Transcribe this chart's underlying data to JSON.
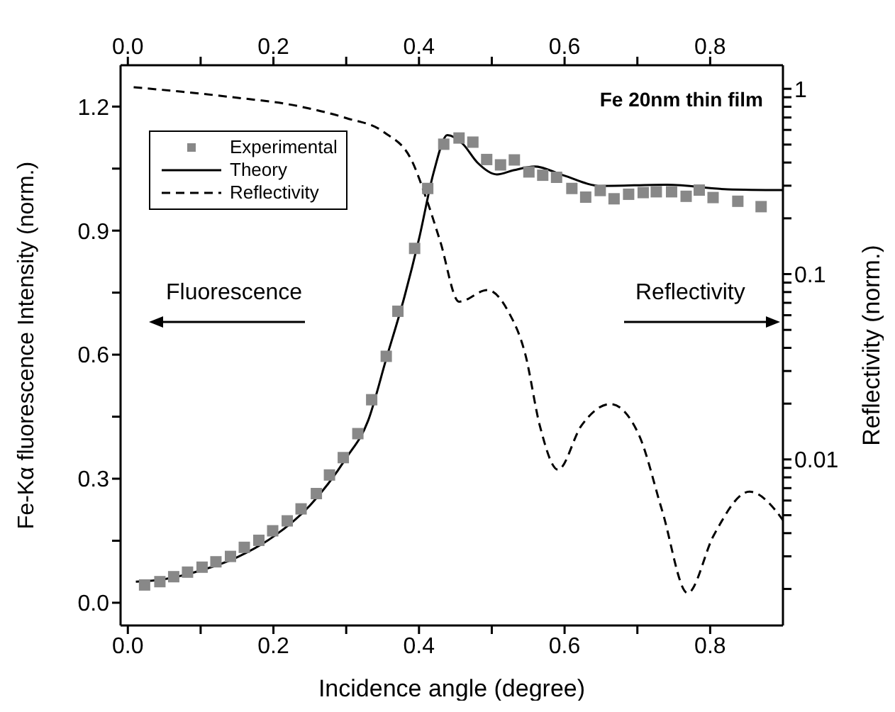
{
  "chart_data": {
    "type": "line",
    "xlabel": "Incidence angle (degree)",
    "ylabel": "Fe-Kα fluorescence Intensity (norm.)",
    "y2label": "Reflectivity (norm.)",
    "annotations": [
      "Fe 20nm thin film",
      "Fluorescence",
      "Reflectivity"
    ],
    "xlim": [
      -0.01,
      0.9
    ],
    "xticks": [
      {
        "value": 0,
        "label": "0.0"
      },
      {
        "value": 0.1,
        "label": null
      },
      0.2,
      {
        "value": 0.3,
        "label": null
      },
      0.4,
      {
        "value": 0.5,
        "label": null
      },
      0.6,
      {
        "value": 0.7,
        "label": null
      },
      0.8
    ],
    "x2lim": [
      -0.01,
      0.9
    ],
    "x2ticks": [
      {
        "value": 0,
        "label": "0.0"
      },
      {
        "value": 0.1,
        "label": null
      },
      0.2,
      {
        "value": 0.3,
        "label": null
      },
      0.4,
      {
        "value": 0.5,
        "label": null
      },
      0.6,
      {
        "value": 0.7,
        "label": null
      },
      0.8
    ],
    "ylim": [
      -0.055,
      1.3
    ],
    "yticks": [
      {
        "value": 0,
        "label": "0.0"
      },
      {
        "value": 0.15,
        "label": null
      },
      0.3,
      {
        "value": 0.45,
        "label": null
      },
      0.6,
      {
        "value": 0.75,
        "label": null
      },
      0.9,
      {
        "value": 1.05,
        "label": null
      },
      1.2
    ],
    "y2lim": [
      0.00127,
      1.34
    ],
    "y2ticks": [
      {
        "value": 0.002,
        "label": null
      },
      {
        "value": 0.003,
        "label": null
      },
      {
        "value": 0.004,
        "label": null
      },
      {
        "value": 0.005,
        "label": null
      },
      {
        "value": 0.006,
        "label": null
      },
      {
        "value": 0.007,
        "label": null
      },
      {
        "value": 0.008,
        "label": null
      },
      {
        "value": 0.009,
        "label": null
      },
      0.01,
      {
        "value": 0.02,
        "label": null
      },
      {
        "value": 0.03,
        "label": null
      },
      {
        "value": 0.04,
        "label": null
      },
      {
        "value": 0.05,
        "label": null
      },
      {
        "value": 0.06,
        "label": null
      },
      {
        "value": 0.07,
        "label": null
      },
      {
        "value": 0.08,
        "label": null
      },
      {
        "value": 0.09,
        "label": null
      },
      0.1,
      {
        "value": 0.2,
        "label": null
      },
      {
        "value": 0.3,
        "label": null
      },
      {
        "value": 0.4,
        "label": null
      },
      {
        "value": 0.5,
        "label": null
      },
      {
        "value": 0.6,
        "label": null
      },
      {
        "value": 0.7,
        "label": null
      },
      {
        "value": 0.8,
        "label": null
      },
      {
        "value": 0.9,
        "label": null
      },
      1
    ],
    "log": "y2",
    "grid": false,
    "legend": "top left",
    "series": [
      {
        "name": "Experimental",
        "type": "scatter",
        "marker": "square",
        "color": "#888888",
        "x": [
          0.023,
          0.044,
          0.063,
          0.082,
          0.102,
          0.121,
          0.141,
          0.16,
          0.18,
          0.199,
          0.219,
          0.238,
          0.259,
          0.277,
          0.296,
          0.316,
          0.335,
          0.355,
          0.371,
          0.394,
          0.412,
          0.434,
          0.455,
          0.474,
          0.493,
          0.512,
          0.531,
          0.551,
          0.57,
          0.589,
          0.61,
          0.629,
          0.649,
          0.668,
          0.688,
          0.708,
          0.726,
          0.747,
          0.767,
          0.785,
          0.804,
          0.838,
          0.87
        ],
        "values": [
          0.043,
          0.051,
          0.063,
          0.074,
          0.086,
          0.099,
          0.112,
          0.134,
          0.151,
          0.174,
          0.198,
          0.227,
          0.264,
          0.309,
          0.351,
          0.409,
          0.491,
          0.596,
          0.705,
          0.857,
          1.002,
          1.109,
          1.124,
          1.114,
          1.072,
          1.059,
          1.071,
          1.042,
          1.034,
          1.029,
          1.002,
          0.981,
          0.997,
          0.977,
          0.988,
          0.992,
          0.994,
          0.994,
          0.983,
          0.998,
          0.98,
          0.971,
          0.958
        ]
      },
      {
        "name": "Theory",
        "line_style": "solid",
        "color": "#000000",
        "x": [
          0.011,
          0.05,
          0.1,
          0.15,
          0.2,
          0.25,
          0.3,
          0.33,
          0.355,
          0.38,
          0.4,
          0.42,
          0.439,
          0.46,
          0.48,
          0.507,
          0.53,
          0.559,
          0.598,
          0.65,
          0.741,
          0.824,
          0.9
        ],
        "values": [
          0.051,
          0.057,
          0.078,
          0.11,
          0.16,
          0.235,
          0.35,
          0.44,
          0.59,
          0.74,
          0.88,
          1.04,
          1.131,
          1.11,
          1.065,
          1.036,
          1.046,
          1.055,
          1.034,
          1.008,
          1.011,
          1.0,
          0.998
        ]
      },
      {
        "name": "Reflectivity",
        "axis": "y2",
        "line_style": "dashed",
        "color": "#000000",
        "x": [
          0.008,
          0.138,
          0.235,
          0.3,
          0.352,
          0.39,
          0.41,
          0.429,
          0.455,
          0.494,
          0.523,
          0.546,
          0.566,
          0.591,
          0.623,
          0.663,
          0.702,
          0.734,
          0.769,
          0.805,
          0.854,
          0.89,
          0.9
        ],
        "values": [
          1.02,
          0.906,
          0.805,
          0.695,
          0.583,
          0.41,
          0.256,
          0.151,
          0.071,
          0.082,
          0.0625,
          0.037,
          0.0152,
          0.0088,
          0.0152,
          0.0199,
          0.0136,
          0.0053,
          0.0019,
          0.0039,
          0.0067,
          0.0053,
          0.0047
        ]
      }
    ]
  }
}
